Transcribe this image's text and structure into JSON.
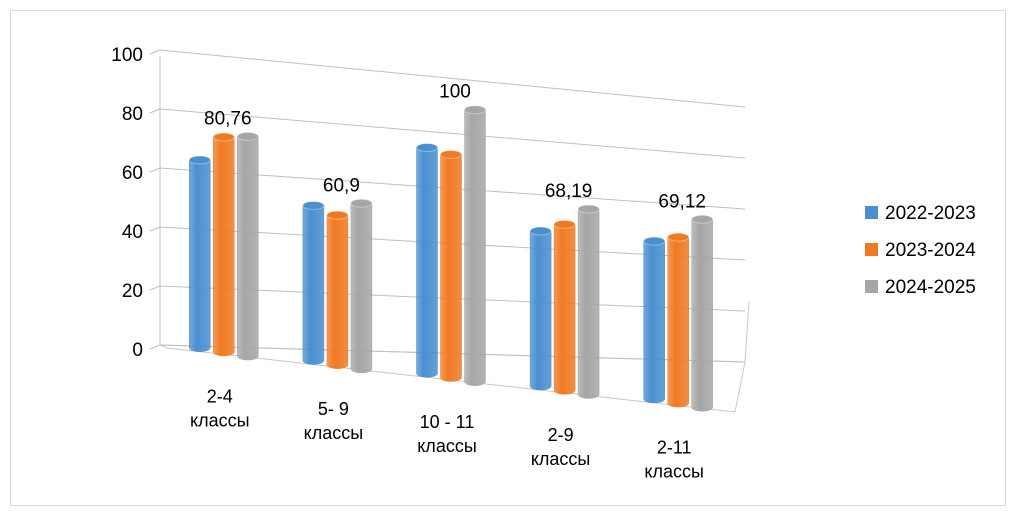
{
  "chart_data": {
    "type": "bar",
    "style": "3d-cylinder",
    "categories": [
      [
        "2-4",
        "классы"
      ],
      [
        "5- 9",
        "классы"
      ],
      [
        "10 - 11",
        "классы"
      ],
      [
        "2-9",
        "классы"
      ],
      [
        "2-11",
        "классы"
      ]
    ],
    "series": [
      {
        "name": "2022-2023",
        "color": "#4a8fd0",
        "values": [
          69,
          57,
          83,
          57,
          58
        ]
      },
      {
        "name": "2023-2024",
        "color": "#f07a23",
        "values": [
          79,
          55,
          82,
          61,
          61
        ]
      },
      {
        "name": "2024-2025",
        "color": "#a6a6a6",
        "values": [
          80.76,
          60.9,
          100,
          68.19,
          69.12
        ]
      }
    ],
    "data_labels": [
      "80,76",
      "60,9",
      "100",
      "68,19",
      "69,12"
    ],
    "ylim": [
      0,
      100
    ],
    "yticks": [
      "0",
      "20",
      "40",
      "60",
      "80",
      "100"
    ],
    "grid": true,
    "legend": "right"
  }
}
